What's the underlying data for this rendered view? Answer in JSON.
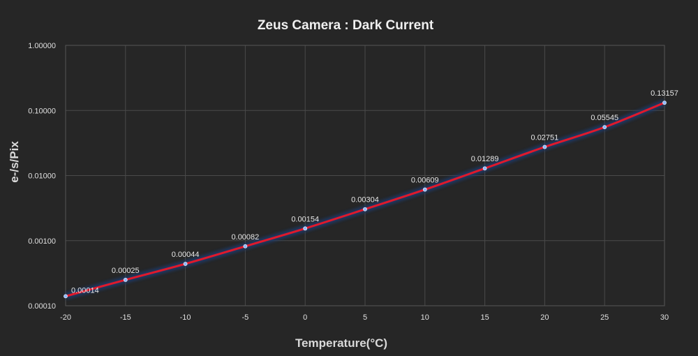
{
  "chart_data": {
    "type": "line",
    "title": "Zeus Camera : Dark Current",
    "xlabel": "Temperature(°C)",
    "ylabel": "e-/s/Pix",
    "x": [
      -20,
      -15,
      -10,
      -5,
      0,
      5,
      10,
      15,
      20,
      25,
      30
    ],
    "series": [
      {
        "values": [
          0.00014,
          0.00025,
          0.00044,
          0.00082,
          0.00154,
          0.00304,
          0.00609,
          0.01289,
          0.02751,
          0.05545,
          0.13157
        ],
        "labels": [
          "0.00014",
          "0.00025",
          "0.00044",
          "0.00082",
          "0.00154",
          "0.00304",
          "0.00609",
          "0.01289",
          "0.02751",
          "0.05545",
          "0.13157"
        ]
      }
    ],
    "xlim": [
      -20,
      30
    ],
    "xticks": [
      "-20",
      "-15",
      "-10",
      "-5",
      "0",
      "5",
      "10",
      "15",
      "20",
      "25",
      "30"
    ],
    "ylim": [
      0.0001,
      1
    ],
    "yscale": "log",
    "yticks": [
      "0.00010",
      "0.00100",
      "0.01000",
      "0.10000",
      "1.00000"
    ],
    "grid": true,
    "colors": {
      "line": "#e0192b",
      "marker": "#8fb8ff",
      "glow": "#1f3a6e"
    }
  }
}
